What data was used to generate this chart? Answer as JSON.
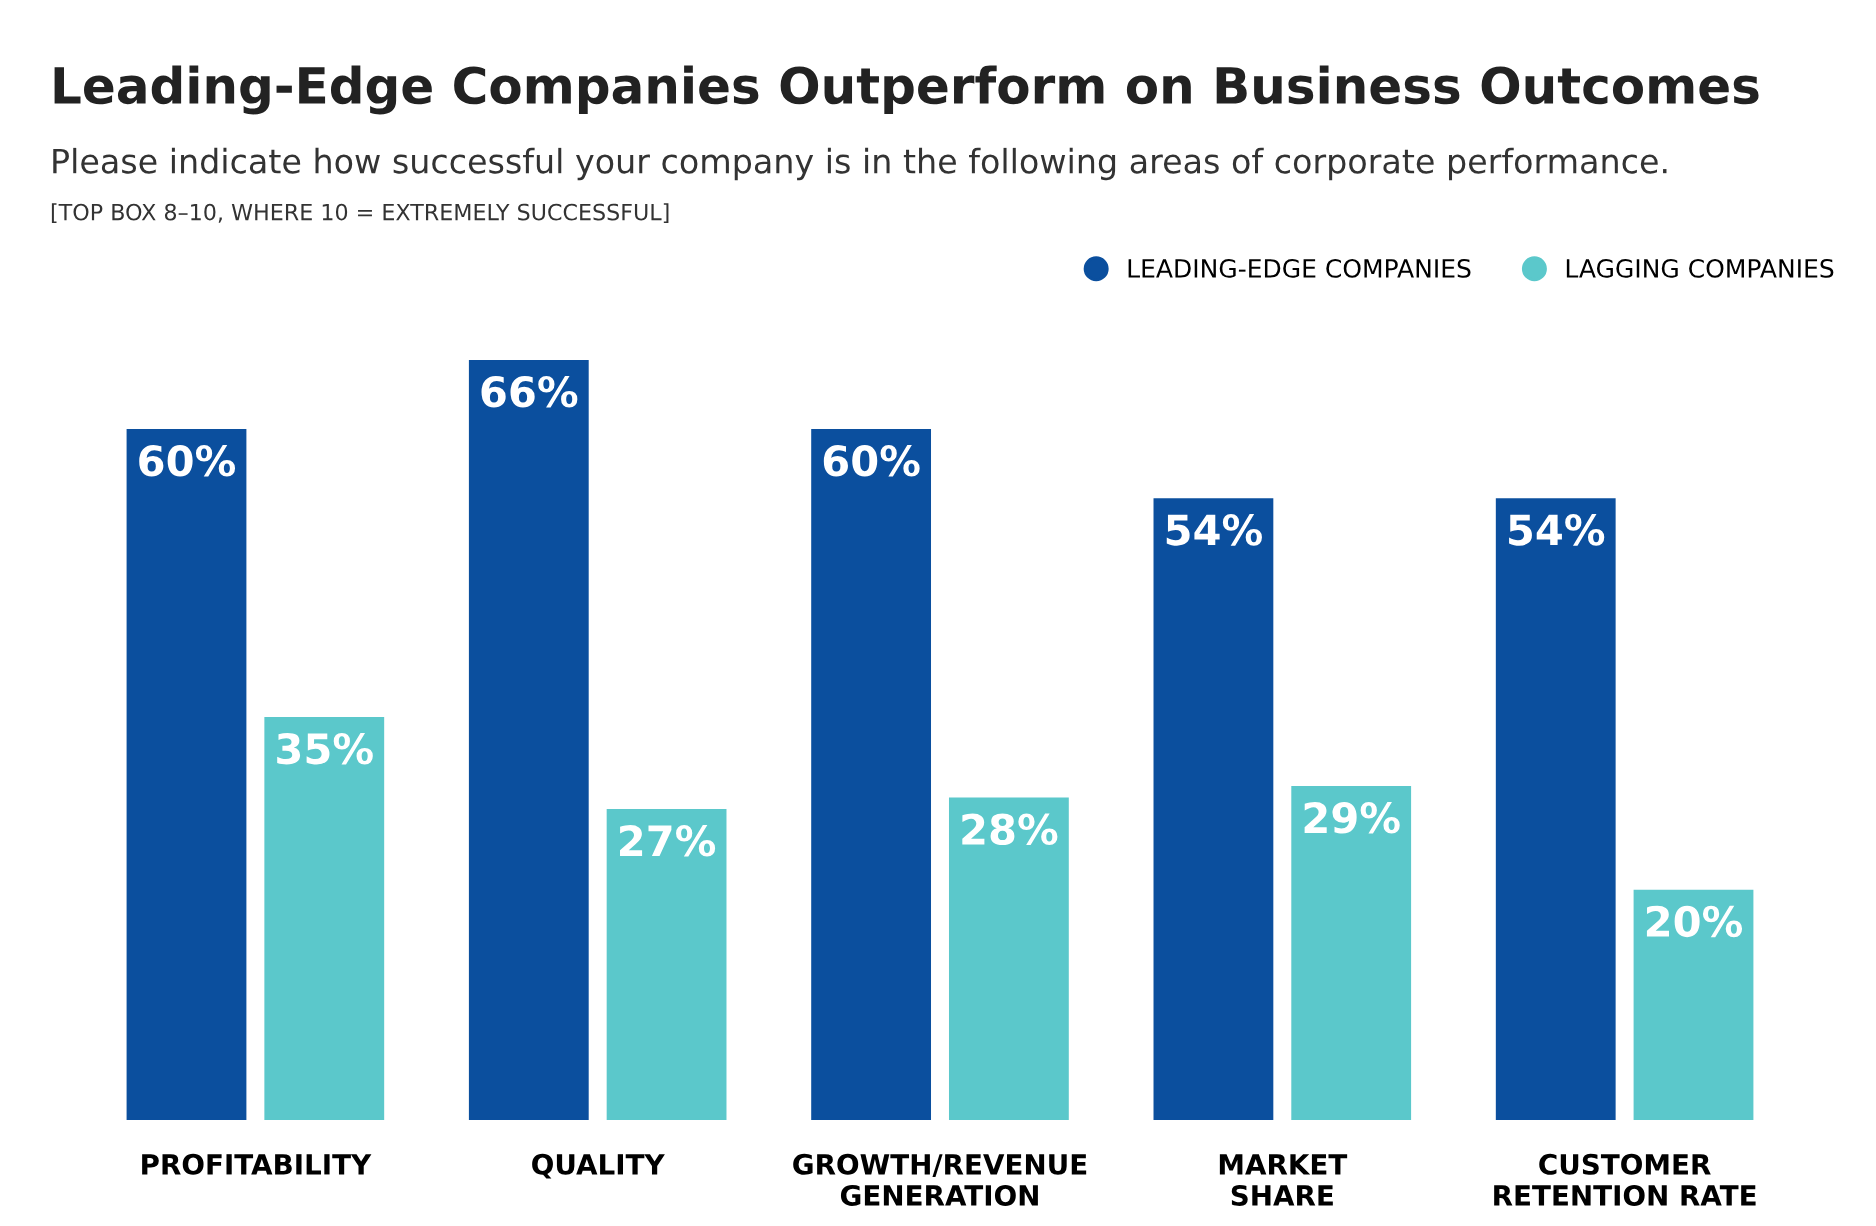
{
  "chart_data": {
    "type": "bar",
    "title": "Leading-Edge Companies Outperform on Business Outcomes",
    "subtitle": "Please indicate how successful your company is in the following areas of corporate performance.",
    "annotations": [
      "[TOP BOX 8–10, WHERE 10 = EXTREMELY SUCCESSFUL]"
    ],
    "categories": [
      "PROFITABILITY",
      "QUALITY",
      "GROWTH/REVENUE\nGENERATION",
      "MARKET\nSHARE",
      "CUSTOMER\nRETENTION RATE"
    ],
    "series": [
      {
        "name": "LEADING-EDGE COMPANIES",
        "color": "#0b4f9e",
        "values": [
          60,
          66,
          60,
          54,
          54
        ],
        "value_labels": [
          "60%",
          "66%",
          "60%",
          "54%",
          "54%"
        ]
      },
      {
        "name": "LAGGING COMPANIES",
        "color": "#5bc8cb",
        "values": [
          35,
          27,
          28,
          29,
          20
        ],
        "value_labels": [
          "35%",
          "27%",
          "28%",
          "29%",
          "20%"
        ]
      }
    ],
    "legend": "top right",
    "grid": false,
    "relative": false
  }
}
